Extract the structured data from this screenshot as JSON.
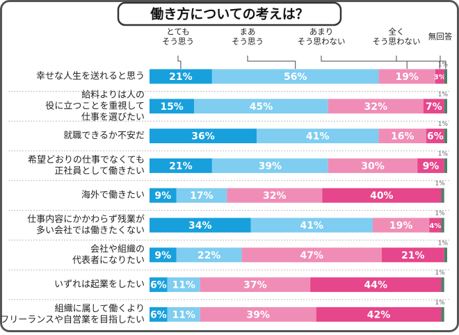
{
  "chart_data": {
    "type": "stacked-bar",
    "title": "働き方についての考えは？",
    "categories": [
      [
        "幸せな人生を送れると思う"
      ],
      [
        "給料よりは人の",
        "役に立つことを重視して",
        "仕事を選びたい"
      ],
      [
        "就職できるか不安だ"
      ],
      [
        "希望どおりの仕事でなくても",
        "正社員として働きたい"
      ],
      [
        "海外で働きたい"
      ],
      [
        "仕事内容にかかわらず残業が",
        "多い会社では働きたくない"
      ],
      [
        "会社や組織の",
        "代表者になりたい"
      ],
      [
        "いずれは起業をしたい"
      ],
      [
        "組織に属して働くより",
        "フリーランスや自営業を目指したい"
      ]
    ],
    "xlim": [
      0,
      100
    ],
    "series": [
      {
        "name": [
          "とても",
          "そう思う"
        ],
        "color": "#17a0dc",
        "values": [
          21,
          15,
          36,
          21,
          9,
          34,
          9,
          6,
          6
        ],
        "value_labels": [
          "21%",
          "15%",
          "36%",
          "21%",
          "9%",
          "34%",
          "9%",
          "6%",
          "6%"
        ]
      },
      {
        "name": [
          "まあ",
          "そう思う"
        ],
        "color": "#7fcdf0",
        "values": [
          56,
          45,
          41,
          39,
          17,
          41,
          22,
          11,
          11
        ],
        "value_labels": [
          "56%",
          "45%",
          "41%",
          "39%",
          "17%",
          "41%",
          "22%",
          "11%",
          "11%"
        ]
      },
      {
        "name": [
          "あまり",
          "そう思わない"
        ],
        "color": "#f08db6",
        "values": [
          19,
          32,
          16,
          30,
          32,
          19,
          47,
          37,
          39
        ],
        "value_labels": [
          "19%",
          "32%",
          "16%",
          "30%",
          "32%",
          "19%",
          "47%",
          "37%",
          "39%"
        ]
      },
      {
        "name": [
          "全く",
          "そう思わない"
        ],
        "color": "#e6468b",
        "values": [
          3,
          7,
          6,
          9,
          40,
          4,
          21,
          44,
          42
        ],
        "value_labels": [
          "3%",
          "7%",
          "6%",
          "9%",
          "40%",
          "4%",
          "21%",
          "44%",
          "42%"
        ]
      },
      {
        "name": [
          "無回答"
        ],
        "color": "#4f7f66",
        "values": [
          1,
          1,
          1,
          1,
          1,
          1,
          1,
          1,
          1
        ],
        "value_labels": [
          "1%",
          "1%",
          "1%",
          "1%",
          "1%",
          "1%",
          "1%",
          "1%",
          "1%"
        ]
      }
    ]
  }
}
